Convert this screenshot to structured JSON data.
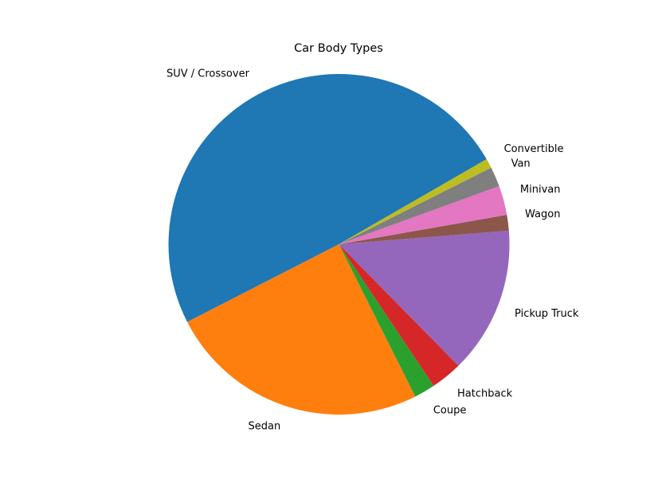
{
  "chart_data": {
    "type": "pie",
    "title": "Car Body Types",
    "start_angle_deg": 30,
    "direction": "counterclockwise",
    "legend": "none",
    "slices": [
      {
        "label": "SUV / Crossover",
        "value": 49.5,
        "color": "#1f77b4"
      },
      {
        "label": "Sedan",
        "value": 25.0,
        "color": "#ff7f0e"
      },
      {
        "label": "Coupe",
        "value": 2.0,
        "color": "#2ca02c"
      },
      {
        "label": "Hatchback",
        "value": 3.0,
        "color": "#d62728"
      },
      {
        "label": "Pickup Truck",
        "value": 14.0,
        "color": "#9467bd"
      },
      {
        "label": "Wagon",
        "value": 1.5,
        "color": "#8c564b"
      },
      {
        "label": "Minivan",
        "value": 2.8,
        "color": "#e377c2"
      },
      {
        "label": "Van",
        "value": 1.9,
        "color": "#7f7f7f"
      },
      {
        "label": "Convertible",
        "value": 0.9,
        "color": "#bcbd22"
      }
    ]
  }
}
